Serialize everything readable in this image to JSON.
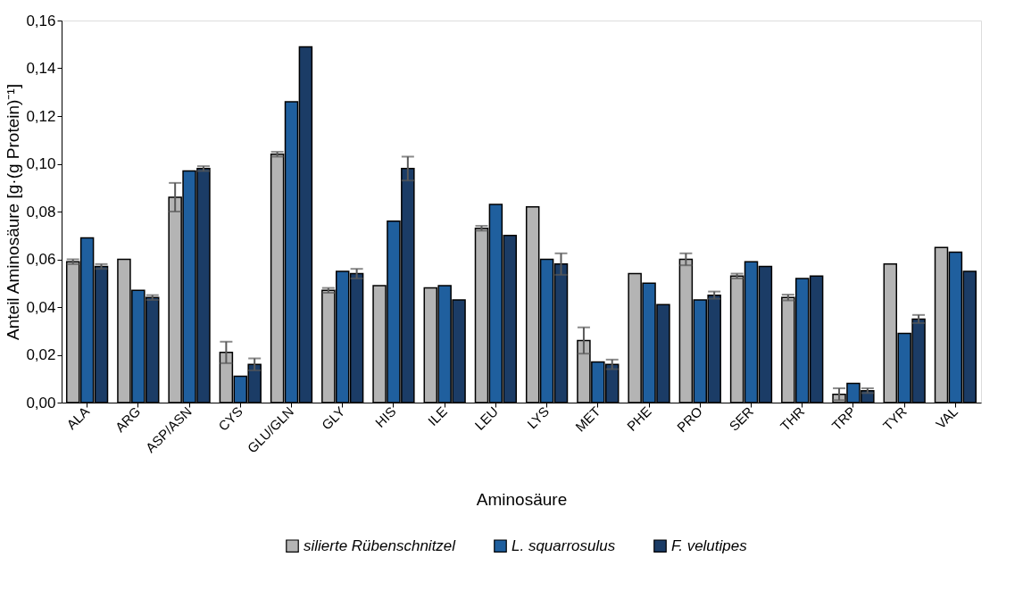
{
  "chart_data": {
    "type": "bar",
    "xlabel": "Aminosäure",
    "ylabel": "Anteil Aminosäure [g·(g Protein)⁻¹]",
    "categories": [
      "ALA",
      "ARG",
      "ASP/ASN",
      "CYS",
      "GLU/GLN",
      "GLY",
      "HIS",
      "ILE",
      "LEU",
      "LYS",
      "MET",
      "PHE",
      "PRO",
      "SER",
      "THR",
      "TRP",
      "TYR",
      "VAL"
    ],
    "series": [
      {
        "name": "silierte Rübenschnitzel",
        "color": "#b4b4b4",
        "values": [
          0.059,
          0.06,
          0.086,
          0.021,
          0.104,
          0.047,
          0.049,
          0.048,
          0.073,
          0.082,
          0.026,
          0.054,
          0.06,
          0.053,
          0.044,
          0.0035,
          0.058,
          0.065
        ],
        "errors": [
          0.001,
          null,
          0.006,
          0.0045,
          0.001,
          0.001,
          null,
          null,
          0.001,
          null,
          0.0055,
          null,
          0.0025,
          0.001,
          0.0012,
          0.0025,
          null,
          null
        ]
      },
      {
        "name": "L. squarrosulus",
        "color": "#1f5f9e",
        "values": [
          0.069,
          0.047,
          0.097,
          0.011,
          0.126,
          0.055,
          0.076,
          0.049,
          0.083,
          0.06,
          0.017,
          0.05,
          0.043,
          0.059,
          0.052,
          0.008,
          0.029,
          0.063
        ],
        "errors": [
          null,
          null,
          null,
          null,
          null,
          null,
          null,
          null,
          null,
          null,
          null,
          null,
          null,
          null,
          null,
          null,
          null,
          null
        ]
      },
      {
        "name": "F. velutipes",
        "color": "#1b3c66",
        "values": [
          0.057,
          0.044,
          0.098,
          0.016,
          0.149,
          0.054,
          0.098,
          0.043,
          0.07,
          0.058,
          0.016,
          0.041,
          0.045,
          0.057,
          0.053,
          0.005,
          0.035,
          0.055
        ],
        "errors": [
          0.001,
          0.001,
          0.001,
          0.0025,
          null,
          0.002,
          0.005,
          null,
          null,
          0.0045,
          0.002,
          null,
          0.0015,
          null,
          null,
          0.001,
          0.0017,
          null
        ]
      }
    ],
    "ylim": [
      0,
      0.16
    ],
    "yticks": [
      {
        "value": 0,
        "label": "0,00"
      },
      {
        "value": 0.02,
        "label": "0,02"
      },
      {
        "value": 0.04,
        "label": "0,04"
      },
      {
        "value": 0.06,
        "label": "0,06"
      },
      {
        "value": 0.08,
        "label": "0,08"
      },
      {
        "value": 0.1,
        "label": "0,10"
      },
      {
        "value": 0.12,
        "label": "0,12"
      },
      {
        "value": 0.14,
        "label": "0,14"
      },
      {
        "value": 0.16,
        "label": "0,16"
      }
    ],
    "grid": false,
    "legend": "bottom"
  }
}
